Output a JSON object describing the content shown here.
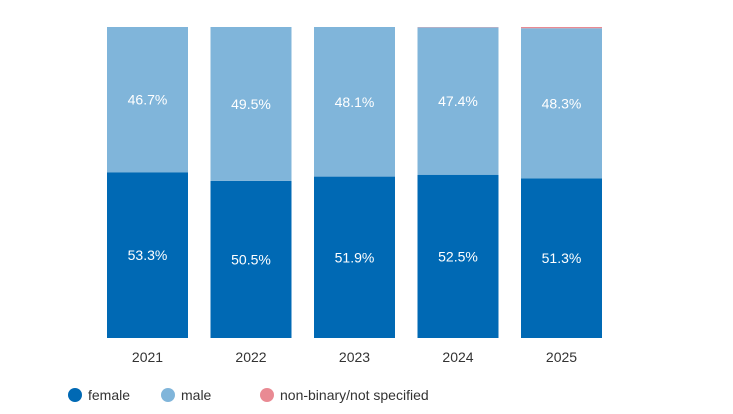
{
  "chart_data": {
    "type": "bar",
    "stacked": true,
    "categories": [
      "2021",
      "2022",
      "2023",
      "2024",
      "2025"
    ],
    "series": [
      {
        "name": "female",
        "color": "#0069b4",
        "values": [
          53.3,
          50.5,
          51.9,
          52.5,
          51.3
        ],
        "labels": [
          "53.3%",
          "50.5%",
          "51.9%",
          "52.5%",
          "51.3%"
        ]
      },
      {
        "name": "male",
        "color": "#80b5da",
        "values": [
          46.7,
          49.5,
          48.1,
          47.4,
          48.3
        ],
        "labels": [
          "46.7%",
          "49.5%",
          "48.1%",
          "47.4%",
          "48.3%"
        ]
      },
      {
        "name": "non-binary/not specified",
        "color": "#e98a93",
        "values": [
          0,
          0,
          0,
          0.1,
          0.4
        ],
        "labels": [
          "",
          "",
          "",
          "",
          ""
        ]
      }
    ],
    "ylim": [
      0,
      100
    ],
    "legend_position": "bottom-left",
    "grid": false
  }
}
